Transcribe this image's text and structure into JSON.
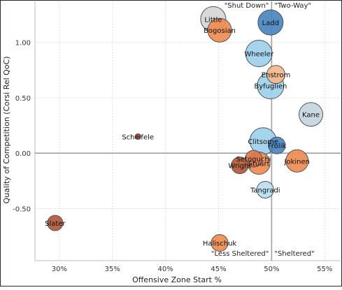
{
  "chart_data": {
    "type": "scatter",
    "title": "",
    "xlabel": "Offensive Zone Start %",
    "ylabel": "Quality of Competition (Corsi Rel QoC)",
    "xlim": [
      0.277,
      0.565
    ],
    "ylim": [
      -0.97,
      1.37
    ],
    "x_ticks": [
      0.3,
      0.35,
      0.4,
      0.45,
      0.5,
      0.55
    ],
    "x_tick_labels": [
      "30%",
      "35%",
      "40%",
      "45%",
      "50%",
      "55%"
    ],
    "y_ticks": [
      -0.5,
      0.0,
      0.5,
      1.0
    ],
    "y_tick_labels": [
      "-0.50",
      "0.00",
      "0.50",
      "1.00"
    ],
    "grid": true,
    "reference_lines": {
      "x": 0.5,
      "y": 0.0
    },
    "quadrant_labels": [
      {
        "text": "\"Shut Down\"",
        "position": "top-left-of-center"
      },
      {
        "text": "\"Two-Way\"",
        "position": "top-right-of-center"
      },
      {
        "text": "\"Less Sheltered\"",
        "position": "bottom-left-of-center"
      },
      {
        "text": "\"Sheltered\"",
        "position": "bottom-right-of-center"
      }
    ],
    "points": [
      {
        "name": "Little",
        "x": 0.445,
        "y": 1.21,
        "size": 18,
        "color": "#d6d6d6"
      },
      {
        "name": "Ladd",
        "x": 0.499,
        "y": 1.18,
        "size": 18,
        "color": "#4a86c0"
      },
      {
        "name": "Bogosian",
        "x": 0.451,
        "y": 1.11,
        "size": 17,
        "color": "#f08c52"
      },
      {
        "name": "Wheeler",
        "x": 0.488,
        "y": 0.9,
        "size": 19,
        "color": "#9ed0ea"
      },
      {
        "name": "Enstrom",
        "x": 0.504,
        "y": 0.71,
        "size": 13,
        "color": "#f6b98c"
      },
      {
        "name": "Byfuglien",
        "x": 0.499,
        "y": 0.61,
        "size": 19,
        "color": "#9ed0ea"
      },
      {
        "name": "Kane",
        "x": 0.537,
        "y": 0.35,
        "size": 17,
        "color": "#c5d6de"
      },
      {
        "name": "Scheifele",
        "x": 0.374,
        "y": 0.15,
        "size": 4,
        "color": "#a24a2a"
      },
      {
        "name": "Clitsome",
        "x": 0.492,
        "y": 0.11,
        "size": 19,
        "color": "#9ed0ea"
      },
      {
        "name": "Frolik",
        "x": 0.505,
        "y": 0.07,
        "size": 12,
        "color": "#4a86c0"
      },
      {
        "name": "Setoguchi",
        "x": 0.483,
        "y": -0.05,
        "size": 12,
        "color": "#d97a4e"
      },
      {
        "name": "Jokinen",
        "x": 0.524,
        "y": -0.07,
        "size": 16,
        "color": "#f08c52"
      },
      {
        "name": "Stuart",
        "x": 0.488,
        "y": -0.09,
        "size": 16,
        "color": "#f08c52"
      },
      {
        "name": "Wright",
        "x": 0.47,
        "y": -0.11,
        "size": 12,
        "color": "#b45a3a"
      },
      {
        "name": "Tangradi",
        "x": 0.494,
        "y": -0.33,
        "size": 12,
        "color": "#b9def0"
      },
      {
        "name": "Slater",
        "x": 0.296,
        "y": -0.63,
        "size": 11,
        "color": "#b45a3a"
      },
      {
        "name": "Halischuk",
        "x": 0.451,
        "y": -0.81,
        "size": 12,
        "color": "#f08c52"
      }
    ]
  }
}
